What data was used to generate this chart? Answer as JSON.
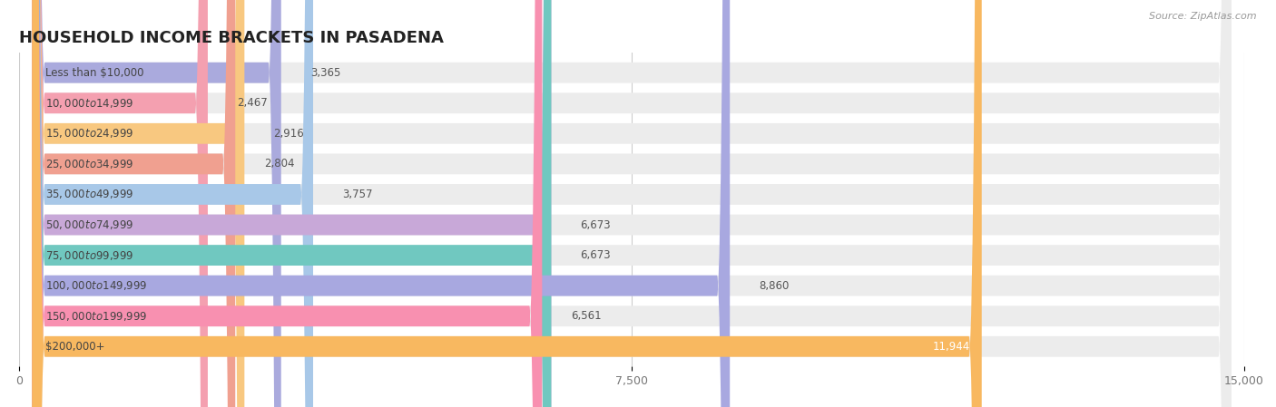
{
  "title": "HOUSEHOLD INCOME BRACKETS IN PASADENA",
  "source": "Source: ZipAtlas.com",
  "categories": [
    "Less than $10,000",
    "$10,000 to $14,999",
    "$15,000 to $24,999",
    "$25,000 to $34,999",
    "$35,000 to $49,999",
    "$50,000 to $74,999",
    "$75,000 to $99,999",
    "$100,000 to $149,999",
    "$150,000 to $199,999",
    "$200,000+"
  ],
  "values": [
    3365,
    2467,
    2916,
    2804,
    3757,
    6673,
    6673,
    8860,
    6561,
    11944
  ],
  "bar_colors": [
    "#aaaadd",
    "#f4a0b0",
    "#f8c880",
    "#f0a090",
    "#a8c8e8",
    "#c8a8d8",
    "#70c8c0",
    "#a8a8e0",
    "#f890b0",
    "#f8b860"
  ],
  "xlim": [
    0,
    15000
  ],
  "xticks": [
    0,
    7500,
    15000
  ],
  "background_color": "#ffffff",
  "bar_bg_color": "#ececec",
  "title_fontsize": 13,
  "label_fontsize": 8.5,
  "value_fontsize": 8.5
}
